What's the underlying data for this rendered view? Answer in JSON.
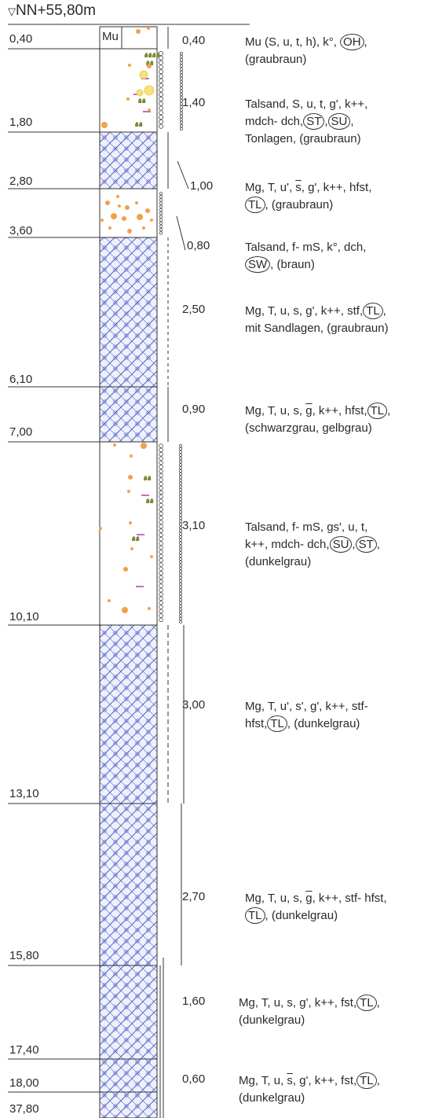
{
  "header": {
    "marker": "▽",
    "elevation": "NN+55,80m"
  },
  "top_label": "Mu",
  "depths": [
    "0,40",
    "1,80",
    "2,80",
    "3,60",
    "6,10",
    "7,00",
    "10,10",
    "13,10",
    "15,80",
    "17,40",
    "18,00",
    "37,80"
  ],
  "thicknesses": [
    "0,40",
    "1,40",
    "1,00",
    "0,80",
    "2,50",
    "0,90",
    "3,10",
    "3,00",
    "2,70",
    "1,60",
    "0,60"
  ],
  "descriptions": [
    {
      "lines": [
        [
          {
            "t": "Mu (S, u, t, h), k°, "
          },
          {
            "t": "OH",
            "ring": true
          },
          {
            "t": ","
          }
        ],
        [
          {
            "t": "(graubraun)"
          }
        ]
      ]
    },
    {
      "lines": [
        [
          {
            "t": "Talsand, S, u, t, g', k++,"
          }
        ],
        [
          {
            "t": "mdch- dch,"
          },
          {
            "t": "ST",
            "ring": true
          },
          {
            "t": ","
          },
          {
            "t": "SU",
            "ring": true
          },
          {
            "t": ","
          }
        ],
        [
          {
            "t": "Tonlagen, (graubraun)"
          }
        ]
      ]
    },
    {
      "lines": [
        [
          {
            "t": "Mg, T, u', "
          },
          {
            "t": "s",
            "ov": true
          },
          {
            "t": ", g', k++, hfst,"
          }
        ],
        [
          {
            "t": "TL",
            "ring": true
          },
          {
            "t": ", (graubraun)"
          }
        ]
      ]
    },
    {
      "lines": [
        [
          {
            "t": "Talsand, f- mS, k°, dch,"
          }
        ],
        [
          {
            "t": "SW",
            "ring": true
          },
          {
            "t": ", (braun)"
          }
        ]
      ]
    },
    {
      "lines": [
        [
          {
            "t": "Mg, T, u, s, g', k++, stf,"
          },
          {
            "t": "TL",
            "ring": true
          },
          {
            "t": ","
          }
        ],
        [
          {
            "t": "mit Sandlagen, (graubraun)"
          }
        ]
      ]
    },
    {
      "lines": [
        [
          {
            "t": "Mg, T, u, s, "
          },
          {
            "t": "g",
            "ov": true
          },
          {
            "t": ", k++, hfst,"
          },
          {
            "t": "TL",
            "ring": true
          },
          {
            "t": ","
          }
        ],
        [
          {
            "t": "(schwarzgrau, gelbgrau)"
          }
        ]
      ]
    },
    {
      "lines": [
        [
          {
            "t": "Talsand, f- mS, gs', u, t,"
          }
        ],
        [
          {
            "t": "k++, mdch- dch,"
          },
          {
            "t": "SU",
            "ring": true
          },
          {
            "t": ","
          },
          {
            "t": "ST",
            "ring": true
          },
          {
            "t": ","
          }
        ],
        [
          {
            "t": "(dunkelgrau)"
          }
        ]
      ]
    },
    {
      "lines": [
        [
          {
            "t": "Mg, T, u', s', g', k++, stf-"
          }
        ],
        [
          {
            "t": "hfst,"
          },
          {
            "t": "TL",
            "ring": true
          },
          {
            "t": ", (dunkelgrau)"
          }
        ]
      ]
    },
    {
      "lines": [
        [
          {
            "t": "Mg, T, u, s, "
          },
          {
            "t": "g",
            "ov": true
          },
          {
            "t": ", k++, stf- hfst,"
          }
        ],
        [
          {
            "t": "TL",
            "ring": true
          },
          {
            "t": ", (dunkelgrau)"
          }
        ]
      ]
    },
    {
      "lines": [
        [
          {
            "t": "Mg, T, u, s, g', k++, fst,"
          },
          {
            "t": "TL",
            "ring": true
          },
          {
            "t": ","
          }
        ],
        [
          {
            "t": "(dunkelgrau)"
          }
        ]
      ]
    },
    {
      "lines": [
        [
          {
            "t": "Mg, T, u, "
          },
          {
            "t": "s",
            "ov": true
          },
          {
            "t": ", g', k++, fst,"
          },
          {
            "t": "TL",
            "ring": true
          },
          {
            "t": ","
          }
        ],
        [
          {
            "t": "(dunkelgrau)"
          }
        ]
      ]
    }
  ],
  "colors": {
    "line": "#333333",
    "hatch": "#5560c8",
    "hatch_bg": "#eef0fb",
    "gravel": "#f4a04a",
    "gravel_light": "#fbe07a",
    "shell": "#7d8a3a",
    "lens": "#b04aa8"
  }
}
